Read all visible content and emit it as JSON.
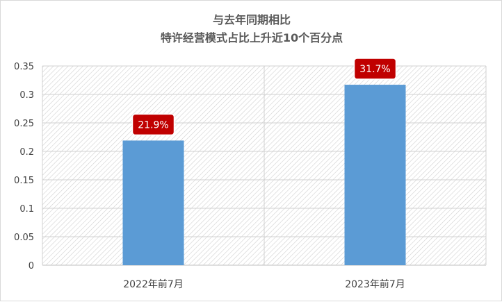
{
  "chart_data": {
    "type": "bar",
    "title_lines": [
      "与去年同期相比",
      "特许经营模式占比上升近10个百分点"
    ],
    "categories": [
      "2022年前7月",
      "2023年前7月"
    ],
    "values": [
      0.219,
      0.317
    ],
    "data_labels": [
      "21.9%",
      "31.7%"
    ],
    "y_ticks": [
      "0",
      "0.05",
      "0.1",
      "0.15",
      "0.2",
      "0.25",
      "0.3",
      "0.35"
    ],
    "ylim": [
      0,
      0.35
    ],
    "xlabel": "",
    "ylabel": "",
    "grid": true,
    "legend": "none",
    "colors": {
      "bar": "#5b9bd5",
      "label_bg": "#c00000",
      "hatch": "#d0d0d0",
      "grid": "#d0d0d0",
      "title": "#595959",
      "text": "#404040"
    }
  }
}
